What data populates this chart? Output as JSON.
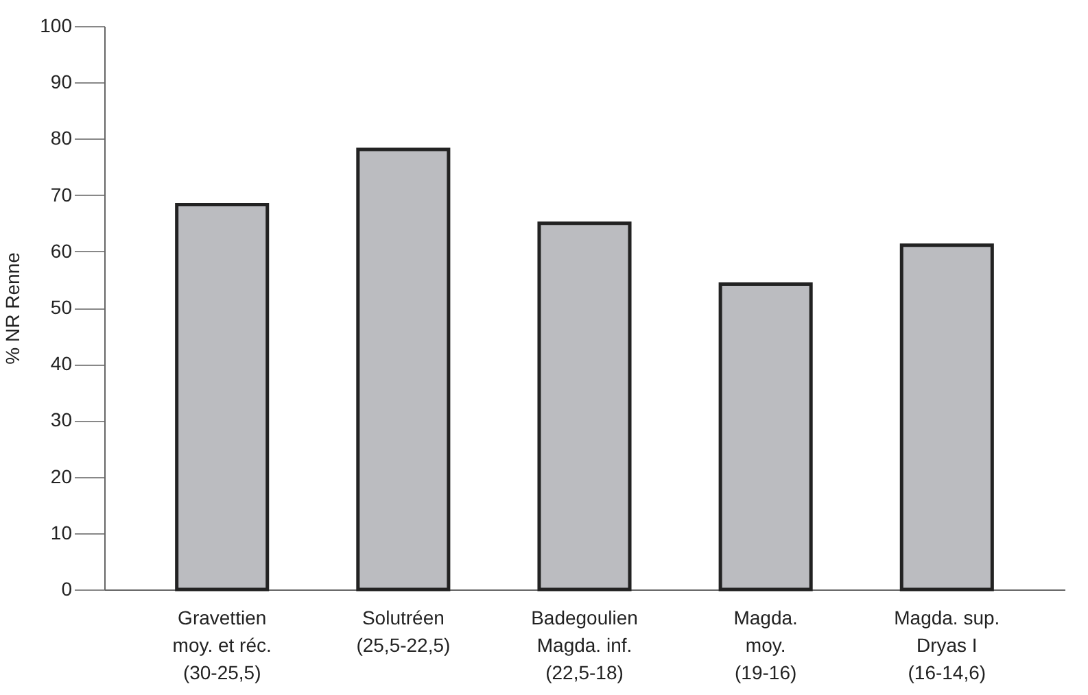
{
  "chart_data": {
    "type": "bar",
    "ylabel": "% NR Renne",
    "categories": [
      "Gravettien\nmoy. et réc.\n(30-25,5)",
      "Solutréen\n\n(25,5-22,5)",
      "Badegoulien\nMagda. inf.\n(22,5-18)",
      "Magda.\nmoy.\n(19-16)",
      "Magda. sup.\nDryas I\n(16-14,6)"
    ],
    "values": [
      68.3,
      78.1,
      65.0,
      54.2,
      61.1
    ],
    "color": "#bbbcc0",
    "ylim": [
      0,
      100
    ],
    "yticks": [
      0,
      10,
      20,
      30,
      40,
      50,
      60,
      70,
      80,
      90,
      100
    ],
    "grid": false
  }
}
